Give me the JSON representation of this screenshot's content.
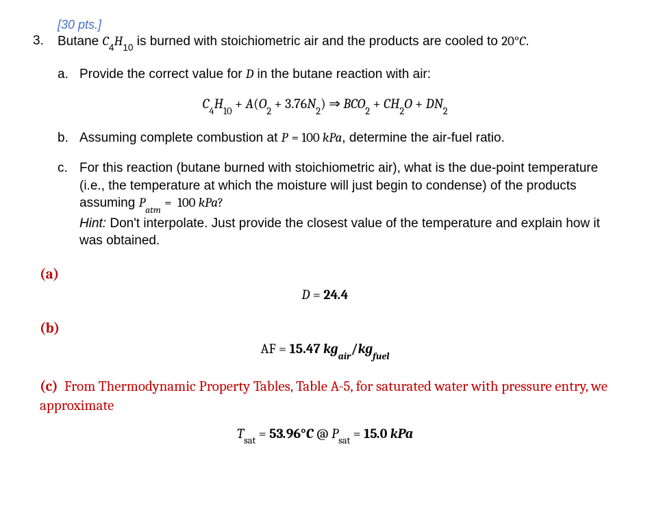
{
  "points": "[30 pts.]",
  "q_number": "3.",
  "q_intro_prefix": "Butane ",
  "q_intro_formula_html": "<span style=\"font-family:Cambria,'Times New Roman',serif;font-style:italic;\">C</span><sub>4</sub><span style=\"font-family:Cambria,'Times New Roman',serif;font-style:italic;\">H</span><sub>10</sub>",
  "q_intro_suffix": " is burned with stoichiometric air and the products are cooled to ",
  "q_intro_temp_html": "<span style=\"font-family:Cambria,'Times New Roman',serif;\">20°<span style=\"font-style:italic;\">C</span></span>.",
  "parts": {
    "a": {
      "letter": "a.",
      "text_prefix": "Provide the correct value for ",
      "var_D_html": "<span style=\"font-family:Cambria,'Times New Roman',serif;font-style:italic;\">D</span>",
      "text_suffix": " in the butane reaction with air:"
    },
    "reaction_html": "<span class=\"num\"></span>C<sub class=\"num\">4</sub>H<sub class=\"num\">10</sub> <span class=\"num\">+</span> A<span class=\"num\">(</span>O<sub class=\"num\">2</sub> <span class=\"num\">+ 3.76</span>N<sub class=\"num\">2</sub><span class=\"num\">)</span> <span class=\"num\">&rArr;</span> BCO<sub class=\"num\">2</sub> <span class=\"num\">+</span> CH<sub class=\"num\">2</sub>O <span class=\"num\">+</span> DN<sub class=\"num\">2</sub>",
    "b": {
      "letter": "b.",
      "text_prefix": "Assuming complete combustion at ",
      "P_html": "<span style=\"font-family:Cambria,'Times New Roman',serif;font-style:italic;\">P</span> <span style=\"font-family:Cambria,'Times New Roman',serif;\">= 100 </span><span style=\"font-family:Cambria,'Times New Roman',serif;font-style:italic;\">kPa</span>",
      "text_suffix": ", determine the air-fuel ratio."
    },
    "c": {
      "letter": "c.",
      "line1": "For this reaction (butane burned with stoichiometric air), what is the due-point temperature (i.e., the temperature at which the moisture will just begin to condense) of the products assuming ",
      "Patm_html": "<span style=\"font-family:Cambria,'Times New Roman',serif;font-style:italic;\">P<sub style=\"font-style:italic;\">atm</sub></span> <span style=\"font-family:Cambria,'Times New Roman',serif;\">=&nbsp; 100 </span><span style=\"font-family:Cambria,'Times New Roman',serif;font-style:italic;\">kPa</span><span style=\"font-family:Cambria,'Times New Roman',serif;\">?</span>",
      "hint_label": "Hint:",
      "hint_text": "  Don't interpolate.  Just provide the closest value of the temperature and explain how it was obtained."
    }
  },
  "answers": {
    "a": {
      "label": "(a)",
      "eq_html": "D <span class=\"num\">=</span> <span class=\"bold num\">24</span><span class=\"bold\">.</span><span class=\"bold num\">4</span>"
    },
    "b": {
      "label": "(b)",
      "eq_html": "<span class=\"num\">AF =</span> <span class=\"bold num\">15.47 </span><span class=\"bold\">kg<sub style=\"font-style:italic;\">air</sub></span><span class=\"bold num\">/</span><span class=\"bold\">kg<sub style=\"font-style:italic;\">fuel</sub></span>"
    },
    "c": {
      "label": "(c)",
      "text": "From Thermodynamic Property Tables, Table A-5, for saturated water with pressure entry, we approximate",
      "eq_html": "T<sub class=\"num\">sat</sub> <span class=\"num\">=</span> <span class=\"bold num\">53</span><span class=\"bold\">.</span><span class=\"bold num\">96°</span><span class=\"bold\">C</span> <span class=\"num\">@</span> P<sub class=\"num\">sat</sub> <span class=\"num\">=</span> <span class=\"bold num\">15</span><span class=\"bold\">.</span><span class=\"bold num\">0 </span><span class=\"bold\">kPa</span>"
    }
  },
  "colors": {
    "points_color": "#4471c4",
    "answer_color": "#c00000",
    "text_color": "#000000",
    "background": "#ffffff"
  }
}
